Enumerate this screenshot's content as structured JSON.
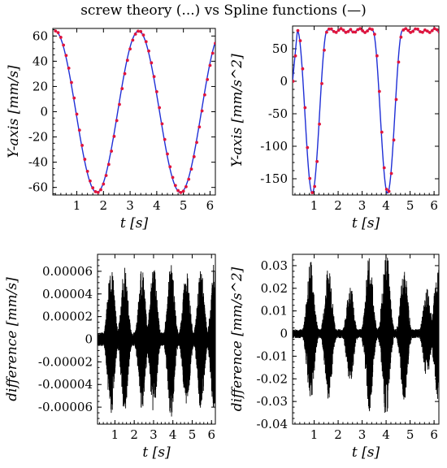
{
  "figure": {
    "title": "screw theory (...) vs Spline functions (—)",
    "colors": {
      "spline_line": "#1f2fd6",
      "screw_dots": "#e0143c",
      "difference_line": "#000000"
    }
  },
  "chart_data": [
    {
      "id": "velocity",
      "type": "line",
      "xlabel": "t [s]",
      "ylabel": "Y-axis [mm/s]",
      "xlim": [
        0.1,
        6.2
      ],
      "ylim": [
        -66,
        66
      ],
      "xticks": [
        1,
        2,
        3,
        4,
        5,
        6
      ],
      "yticks": [
        -60,
        -40,
        -20,
        0,
        20,
        40,
        60
      ],
      "minor_yticks": true,
      "model": {
        "form": "cosine",
        "offset": 0,
        "amplitude": 64,
        "period": 3.14,
        "phase_t": 0.18
      },
      "series": [
        {
          "style": "solid-line",
          "color": "#1f2fd6",
          "x": [
            0.18,
            0.5,
            0.8,
            1.0,
            1.2,
            1.5,
            1.8,
            2.0,
            2.3,
            2.6,
            2.9,
            3.1,
            3.32,
            3.6,
            3.9,
            4.2,
            4.5,
            4.75,
            5.0,
            5.3,
            5.6,
            5.9,
            6.2
          ],
          "y": [
            64,
            53,
            27,
            9,
            -11,
            -63,
            -55,
            -40,
            -13,
            24,
            47,
            59,
            64,
            54,
            30,
            -12,
            -63,
            -56,
            -42,
            -13,
            24,
            43,
            50
          ]
        },
        {
          "style": "dotted",
          "color": "#e0143c",
          "x": [
            0.18,
            0.5,
            0.8,
            1.0,
            1.2,
            1.5,
            1.8,
            2.0,
            2.3,
            2.6,
            2.9,
            3.1,
            3.32,
            3.6,
            3.9,
            4.2,
            4.5,
            4.75,
            5.0,
            5.3,
            5.6,
            5.9,
            6.2
          ],
          "y": [
            64,
            53,
            27,
            9,
            -11,
            -63,
            -55,
            -40,
            -13,
            24,
            47,
            59,
            64,
            54,
            30,
            -12,
            -63,
            -56,
            -42,
            -13,
            24,
            43,
            50
          ]
        }
      ]
    },
    {
      "id": "acceleration",
      "type": "line",
      "xlabel": "t [s]",
      "ylabel": "Y-axis [mm/s^2]",
      "xlim": [
        0.1,
        6.2
      ],
      "ylim": [
        -175,
        85
      ],
      "xticks": [
        1,
        2,
        3,
        4,
        5,
        6
      ],
      "yticks": [
        -150,
        -100,
        -50,
        0,
        50
      ],
      "minor_yticks": true,
      "model": {
        "form": "shaped-wave",
        "period": 3.14,
        "min_t": 0.92,
        "min": -172,
        "plateau": 78,
        "ripple": 3,
        "start": 0
      },
      "series": [
        {
          "style": "solid-line",
          "color": "#1f2fd6",
          "x": [
            0.1,
            0.5,
            0.92,
            1.3,
            1.65,
            1.85,
            2.2,
            2.6,
            2.9,
            3.3,
            3.7,
            4.06,
            4.45,
            4.8,
            5.0,
            5.4,
            5.8,
            6.2
          ],
          "y": [
            0,
            -100,
            -172,
            -100,
            30,
            78,
            75,
            79,
            72,
            -30,
            -140,
            -172,
            -100,
            30,
            78,
            75,
            79,
            76
          ]
        },
        {
          "style": "dotted",
          "color": "#e0143c",
          "x": [
            0.1,
            0.5,
            0.92,
            1.3,
            1.65,
            1.85,
            2.2,
            2.6,
            2.9,
            3.3,
            3.7,
            4.06,
            4.45,
            4.8,
            5.0,
            5.4,
            5.8,
            6.2
          ],
          "y": [
            0,
            -100,
            -172,
            -100,
            30,
            78,
            75,
            79,
            72,
            -30,
            -140,
            -172,
            -100,
            30,
            78,
            75,
            79,
            76
          ]
        }
      ]
    },
    {
      "id": "velocity-difference",
      "type": "line",
      "xlabel": "t [s]",
      "ylabel": "difference [mm/s]",
      "xlim": [
        0.1,
        6.2
      ],
      "ylim": [
        -7.5e-05,
        7.5e-05
      ],
      "xticks": [
        1,
        2,
        3,
        4,
        5,
        6
      ],
      "yticks": [
        -6e-05,
        -4e-05,
        -2e-05,
        0,
        2e-05,
        4e-05,
        6e-05
      ],
      "ytick_labels": [
        "-0.00006",
        "-0.00004",
        "-0.00002",
        "0",
        "0.00002",
        "0.00004",
        "0.00006"
      ],
      "minor_yticks": true,
      "series": [
        {
          "style": "oscillation",
          "color": "#000000",
          "envelope_peaks": [
            {
              "t": 0.8,
              "amp": 7e-05
            },
            {
              "t": 1.5,
              "amp": 6.5e-05
            },
            {
              "t": 2.4,
              "amp": 6.3e-05
            },
            {
              "t": 3.0,
              "amp": 6.6e-05
            },
            {
              "t": 3.9,
              "amp": 7e-05
            },
            {
              "t": 4.7,
              "amp": 6.3e-05
            },
            {
              "t": 5.45,
              "amp": 6.2e-05
            },
            {
              "t": 6.15,
              "amp": 7e-05
            }
          ],
          "envelope_width": 0.3,
          "baseline_noise": 6e-06
        }
      ]
    },
    {
      "id": "acceleration-difference",
      "type": "line",
      "xlabel": "t [s]",
      "ylabel": "difference [mm/s^2]",
      "xlim": [
        0.1,
        6.2
      ],
      "ylim": [
        -0.04,
        0.035
      ],
      "xticks": [
        1,
        2,
        3,
        4,
        5,
        6
      ],
      "yticks": [
        -0.04,
        -0.03,
        -0.02,
        -0.01,
        0,
        0.01,
        0.02,
        0.03
      ],
      "minor_yticks": true,
      "series": [
        {
          "style": "oscillation",
          "color": "#000000",
          "envelope_peaks": [
            {
              "t": 0.85,
              "amp": 0.033
            },
            {
              "t": 1.6,
              "amp": 0.03
            },
            {
              "t": 2.5,
              "amp": 0.022
            },
            {
              "t": 3.3,
              "amp": 0.035
            },
            {
              "t": 4.0,
              "amp": 0.04
            },
            {
              "t": 4.75,
              "amp": 0.03
            },
            {
              "t": 5.7,
              "amp": 0.02
            },
            {
              "t": 6.15,
              "amp": 0.03
            }
          ],
          "envelope_width": 0.25,
          "baseline_noise": 0.002
        }
      ]
    }
  ]
}
